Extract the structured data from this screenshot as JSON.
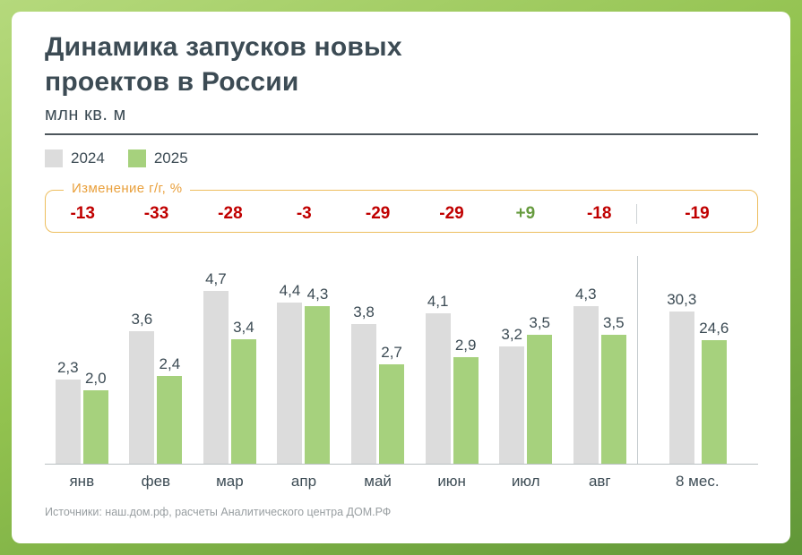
{
  "header": {
    "title_line1": "Динамика запусков новых",
    "title_line2": "проектов в России",
    "subtitle": "млн кв. м"
  },
  "legend": [
    {
      "label": "2024",
      "color": "#dcdcdc"
    },
    {
      "label": "2025",
      "color": "#a6d17d"
    }
  ],
  "change_box": {
    "label": "Изменение г/г, %",
    "values": [
      "-13",
      "-33",
      "-28",
      "-3",
      "-29",
      "-29",
      "+9",
      "-18",
      "-19"
    ]
  },
  "chart_data": {
    "type": "bar",
    "title": "Динамика запусков новых проектов в России",
    "ylabel": "млн кв. м",
    "categories": [
      "янв",
      "фев",
      "мар",
      "апр",
      "май",
      "июн",
      "июл",
      "авг",
      "8 мес."
    ],
    "series": [
      {
        "name": "2024",
        "values": [
          2.3,
          3.6,
          4.7,
          4.4,
          3.8,
          4.1,
          3.2,
          4.3,
          30.3
        ],
        "labels": [
          "2,3",
          "3,6",
          "4,7",
          "4,4",
          "3,8",
          "4,1",
          "3,2",
          "4,3",
          "30,3"
        ]
      },
      {
        "name": "2025",
        "values": [
          2.0,
          2.4,
          3.4,
          4.3,
          2.7,
          2.9,
          3.5,
          3.5,
          24.6
        ],
        "labels": [
          "2,0",
          "2,4",
          "3,4",
          "4,3",
          "2,7",
          "2,9",
          "3,5",
          "3,5",
          "24,6"
        ]
      }
    ],
    "yoy_change_pct": [
      -13,
      -33,
      -28,
      -3,
      -29,
      -29,
      9,
      -18,
      -19
    ],
    "legend_position": "top-left",
    "grid": false,
    "notes": "Last category '8 мес.' is a cumulative 8-month total drawn at a smaller vertical scale than the monthly bars"
  },
  "footer": "Источники: наш.дом.рф, расчеты Аналитического центра ДОМ.РФ",
  "colors": {
    "bar_2024": "#dcdcdc",
    "bar_2025": "#a6d17d",
    "negative_change": "#c00000",
    "positive_change": "#669b3e",
    "accent_orange": "#e9a03c",
    "title_text": "#3c4b54",
    "frame_green_light": "#b5d97c",
    "frame_green_dark": "#619738"
  }
}
